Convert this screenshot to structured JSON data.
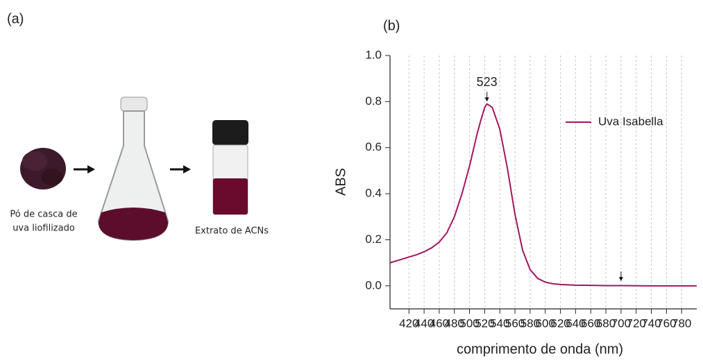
{
  "panel_a": {
    "label": "(a)",
    "powder_caption": [
      "Pó de casca de",
      "uva liofilizado"
    ],
    "vial_caption": "Extrato de ACNs"
  },
  "chart_data": {
    "type": "line",
    "panel_label": "(b)",
    "x_label": "comprimento de onda (nm)",
    "y_label": "ABS",
    "x": [
      395,
      410,
      420,
      430,
      440,
      450,
      460,
      470,
      480,
      490,
      500,
      510,
      515,
      520,
      523,
      530,
      540,
      550,
      560,
      570,
      580,
      590,
      600,
      610,
      620,
      640,
      660,
      680,
      700,
      740,
      800
    ],
    "series": [
      {
        "name": "Uva Isabella",
        "color": "#a3155f",
        "values": [
          0.1,
          0.115,
          0.125,
          0.135,
          0.148,
          0.165,
          0.19,
          0.23,
          0.3,
          0.4,
          0.52,
          0.66,
          0.72,
          0.775,
          0.79,
          0.775,
          0.68,
          0.51,
          0.31,
          0.155,
          0.07,
          0.032,
          0.016,
          0.009,
          0.006,
          0.003,
          0.002,
          0.001,
          0.001,
          0.0,
          0.0
        ]
      }
    ],
    "xlim": [
      395,
      800
    ],
    "ylim": [
      -0.1,
      1.0
    ],
    "xticks": [
      420,
      440,
      460,
      480,
      500,
      520,
      540,
      560,
      580,
      600,
      620,
      640,
      660,
      680,
      700,
      720,
      740,
      760,
      780
    ],
    "yticks": [
      {
        "value": 0,
        "label": "0.0"
      },
      0.2,
      0.4,
      0.6,
      0.8,
      {
        "value": 1,
        "label": "1.0"
      }
    ],
    "grid": true,
    "annotations": [
      {
        "text": "523",
        "x": 523,
        "y": 0.8
      },
      {
        "x": 700,
        "y": 0.02
      }
    ]
  }
}
